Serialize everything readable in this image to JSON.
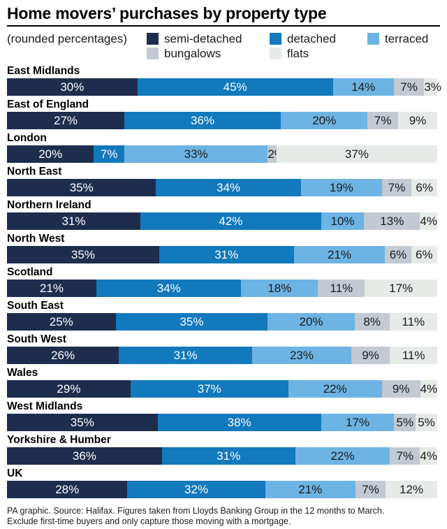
{
  "title": "Home movers’ purchases by property type",
  "legend": {
    "note": "(rounded percentages)",
    "items": [
      {
        "label": "semi-detached",
        "color": "#1e2c4e"
      },
      {
        "label": "detached",
        "color": "#1279bd"
      },
      {
        "label": "terraced",
        "color": "#6db4e4"
      },
      {
        "label": "bungalows",
        "color": "#c3cad3"
      },
      {
        "label": "flats",
        "color": "#e6ebe8"
      }
    ]
  },
  "chart_data": {
    "type": "bar",
    "stacked": true,
    "orientation": "horizontal",
    "value_unit": "%",
    "note": "rounded percentages, bars normalized to full width",
    "series": [
      "semi-detached",
      "detached",
      "terraced",
      "bungalows",
      "flats"
    ],
    "categories": [
      "East Midlands",
      "East of England",
      "London",
      "North East",
      "Northern Ireland",
      "North West",
      "Scotland",
      "South East",
      "South West",
      "Wales",
      "West Midlands",
      "Yorkshire & Humber",
      "UK"
    ],
    "rows": [
      {
        "region": "East Midlands",
        "values": [
          30,
          45,
          14,
          7,
          3
        ]
      },
      {
        "region": "East of England",
        "values": [
          27,
          36,
          20,
          7,
          9
        ]
      },
      {
        "region": "London",
        "values": [
          20,
          7,
          33,
          2,
          37
        ]
      },
      {
        "region": "North East",
        "values": [
          35,
          34,
          19,
          7,
          6
        ]
      },
      {
        "region": "Northern Ireland",
        "values": [
          31,
          42,
          10,
          13,
          4
        ]
      },
      {
        "region": "North West",
        "values": [
          35,
          31,
          21,
          6,
          6
        ]
      },
      {
        "region": "Scotland",
        "values": [
          21,
          34,
          18,
          11,
          17
        ]
      },
      {
        "region": "South East",
        "values": [
          25,
          35,
          20,
          8,
          11
        ]
      },
      {
        "region": "South West",
        "values": [
          26,
          31,
          23,
          9,
          11
        ]
      },
      {
        "region": "Wales",
        "values": [
          29,
          37,
          22,
          9,
          4
        ]
      },
      {
        "region": "West Midlands",
        "values": [
          35,
          38,
          17,
          5,
          5
        ]
      },
      {
        "region": "Yorkshire & Humber",
        "values": [
          36,
          31,
          22,
          7,
          4
        ]
      },
      {
        "region": "UK",
        "values": [
          28,
          32,
          21,
          7,
          12
        ]
      }
    ],
    "label_colors": {
      "on_dark": "#ffffff",
      "on_light": "#1a1a1a"
    }
  },
  "footer": {
    "line1": "PA graphic. Source: Halifax. Figures taken from Lloyds Banking Group in the 12 months to March.",
    "line2": "Exclude first-time buyers and only capture those moving with a mortgage."
  }
}
